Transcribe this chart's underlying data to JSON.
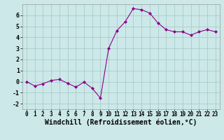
{
  "x": [
    0,
    1,
    2,
    3,
    4,
    5,
    6,
    7,
    8,
    9,
    10,
    11,
    12,
    13,
    14,
    15,
    16,
    17,
    18,
    19,
    20,
    21,
    22,
    23
  ],
  "y": [
    0.0,
    -0.4,
    -0.2,
    0.1,
    0.2,
    -0.15,
    -0.5,
    -0.05,
    -0.6,
    -1.5,
    3.0,
    4.6,
    5.4,
    6.6,
    6.5,
    6.2,
    5.3,
    4.7,
    4.5,
    4.5,
    4.2,
    4.5,
    4.7,
    4.5
  ],
  "line_color": "#8B008B",
  "marker": "D",
  "marker_size": 2,
  "bg_color": "#cce8e8",
  "grid_color": "#aacccc",
  "xlabel": "Windchill (Refroidissement éolien,°C)",
  "xlim": [
    -0.5,
    23.5
  ],
  "ylim": [
    -2.5,
    7.0
  ],
  "yticks": [
    -2,
    -1,
    0,
    1,
    2,
    3,
    4,
    5,
    6
  ],
  "xticks": [
    0,
    1,
    2,
    3,
    4,
    5,
    6,
    7,
    8,
    9,
    10,
    11,
    12,
    13,
    14,
    15,
    16,
    17,
    18,
    19,
    20,
    21,
    22,
    23
  ]
}
